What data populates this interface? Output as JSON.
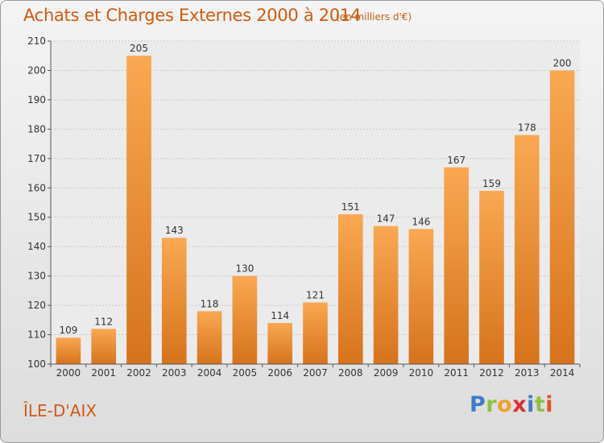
{
  "title": "Achats et Charges Externes 2000 à 2014",
  "subtitle": "(en milliers d'€)",
  "place": "ÎLE-D'AIX",
  "logo": {
    "letters": [
      "P",
      "r",
      "o",
      "x",
      "i",
      "t",
      "i"
    ],
    "colors": [
      "#3d7cc9",
      "#8fc13e",
      "#f0a030",
      "#d8302f",
      "#3d7cc9",
      "#8fc13e",
      "#e0502a"
    ]
  },
  "colors": {
    "bar_light": "#f8a550",
    "bar_dark": "#d8741e",
    "title": "#d05a10"
  },
  "chart_data": {
    "type": "bar",
    "categories": [
      "2000",
      "2001",
      "2002",
      "2003",
      "2004",
      "2005",
      "2006",
      "2007",
      "2008",
      "2009",
      "2010",
      "2011",
      "2012",
      "2013",
      "2014"
    ],
    "values": [
      109,
      112,
      205,
      143,
      118,
      130,
      114,
      121,
      151,
      147,
      146,
      167,
      159,
      178,
      200
    ],
    "ylim": [
      100,
      210
    ],
    "yticks": [
      100,
      110,
      120,
      130,
      140,
      150,
      160,
      170,
      180,
      190,
      200,
      210
    ],
    "grid": true
  }
}
